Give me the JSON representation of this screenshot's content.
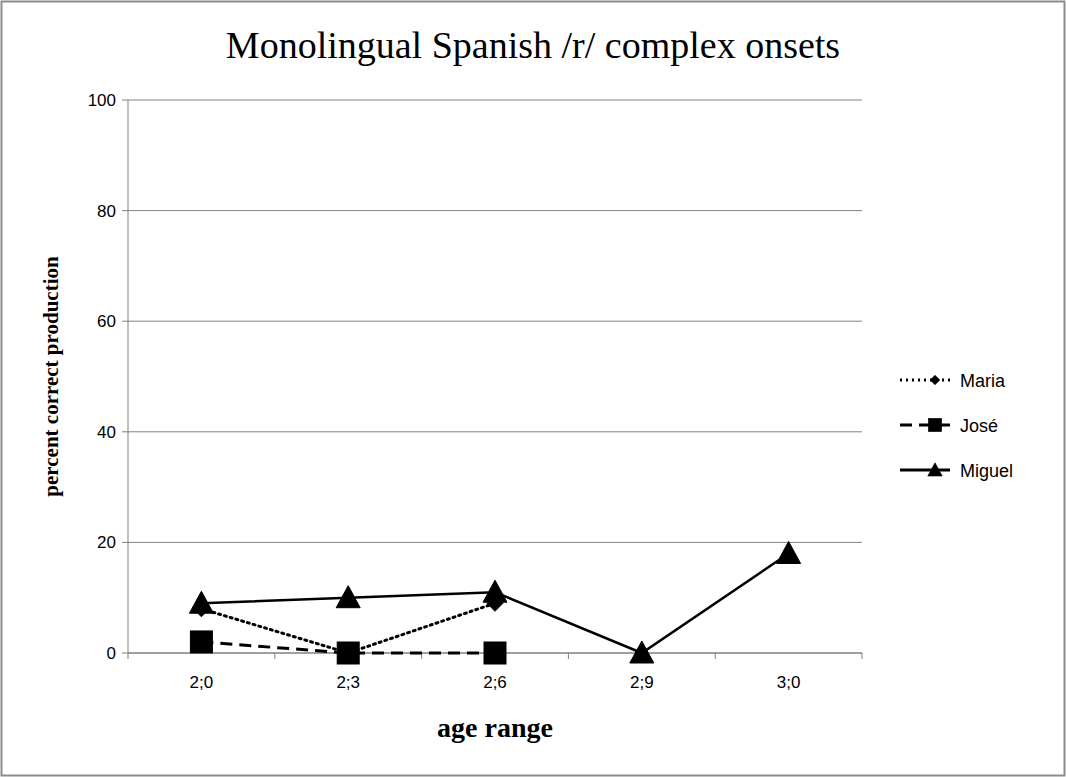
{
  "chart_data": {
    "type": "line",
    "title": "Monolingual Spanish /r/ complex onsets",
    "x_label": "age range",
    "y_label": "percent correct production",
    "categories": [
      "2;0",
      "2;3",
      "2;6",
      "2;9",
      "3;0"
    ],
    "series": [
      {
        "name": "Maria",
        "color": "#000000",
        "marker": "diamond",
        "line_style": "dotted",
        "values": [
          8,
          0,
          9,
          null,
          null
        ]
      },
      {
        "name": "José",
        "color": "#000000",
        "marker": "square",
        "line_style": "dashed",
        "values": [
          2,
          0,
          0,
          null,
          null
        ]
      },
      {
        "name": "Miguel",
        "color": "#000000",
        "marker": "triangle",
        "line_style": "solid",
        "values": [
          9,
          10,
          11,
          0,
          18
        ]
      }
    ],
    "ylim": [
      0,
      100
    ],
    "yticks": [
      0,
      20,
      40,
      60,
      80,
      100
    ],
    "grid": true,
    "legend": "right"
  }
}
